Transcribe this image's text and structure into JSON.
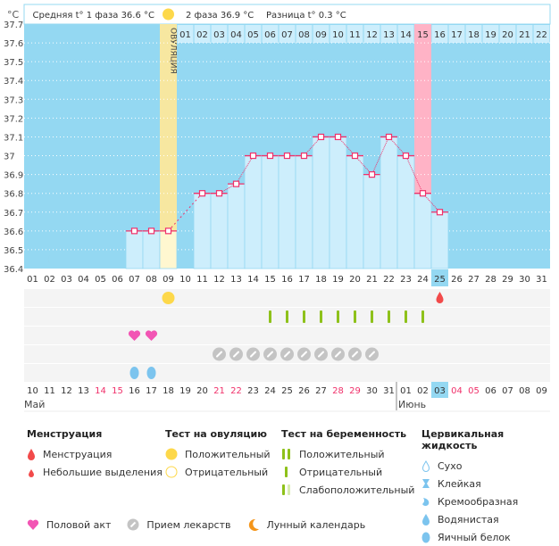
{
  "header": {
    "unit": "°C",
    "phase1": "Средняя t° 1 фаза 36.6 °C",
    "phase2": "2 фаза 36.9 °C",
    "diff": "Разница t° 0.3 °C",
    "ovulation_label": "ОВУЛЯЦИЯ"
  },
  "chart_data": {
    "type": "line",
    "ylim": [
      36.4,
      37.7
    ],
    "yticks": [
      "37.7",
      "37.6",
      "37.5",
      "37.4",
      "37.3",
      "37.2",
      "37.1",
      "37",
      "36.9",
      "36.8",
      "36.7",
      "36.6",
      "36.5",
      "36.4"
    ],
    "cycle_days": [
      "01",
      "02",
      "03",
      "04",
      "05",
      "06",
      "07",
      "08",
      "09",
      "10",
      "11",
      "12",
      "13",
      "14",
      "15",
      "16",
      "17",
      "18",
      "19",
      "20",
      "21",
      "22",
      "23",
      "24",
      "25",
      "26",
      "27",
      "28",
      "29",
      "30",
      "31"
    ],
    "top_days": [
      "01",
      "02",
      "03",
      "04",
      "05",
      "06",
      "07",
      "08",
      "09",
      "10",
      "11",
      "12",
      "13",
      "14",
      "15",
      "16",
      "17",
      "18",
      "19",
      "20",
      "21",
      "22"
    ],
    "temperatures": [
      null,
      null,
      null,
      null,
      null,
      null,
      36.6,
      36.6,
      36.6,
      null,
      36.8,
      36.8,
      36.85,
      37.0,
      37.0,
      37.0,
      37.0,
      37.1,
      37.1,
      37.0,
      36.9,
      37.1,
      37.0,
      36.8,
      36.7,
      null,
      null,
      null,
      null,
      null,
      null
    ],
    "ovulation_day": 9,
    "highlight_day": 24,
    "current_day": 25,
    "moon_day": 2,
    "dates": [
      "10",
      "11",
      "12",
      "13",
      "14",
      "15",
      "16",
      "17",
      "18",
      "19",
      "20",
      "21",
      "22",
      "23",
      "24",
      "25",
      "26",
      "27",
      "28",
      "29",
      "30",
      "31",
      "01",
      "02",
      "03",
      "04",
      "05",
      "06",
      "07",
      "08",
      "09"
    ],
    "weekend_dates_idx": [
      5,
      6,
      12,
      13,
      19,
      20,
      26,
      27
    ],
    "months": [
      "Май",
      "Июнь"
    ],
    "markers": {
      "ovulation_test_positive": [
        9
      ],
      "menstruation": [
        25
      ],
      "pregnancy_test_negative": [
        15,
        16,
        17,
        18,
        19,
        20,
        21,
        22,
        23,
        24
      ],
      "intercourse": [
        7,
        8
      ],
      "medication": [
        12,
        13,
        14,
        15,
        16,
        17,
        18,
        19,
        20,
        21
      ],
      "egg_white": [
        7,
        8
      ]
    }
  },
  "colors": {
    "bg": "#94d8f2",
    "bar": "#cdeefc",
    "line": "#f0306a",
    "ovulation": "#f7e7a0",
    "highlight": "#ffb3c6",
    "weekend": "#f0306a"
  },
  "legend": {
    "menstruation": {
      "title": "Менструация",
      "items": [
        "Менструация",
        "Небольшие выделения"
      ]
    },
    "ovulation_test": {
      "title": "Тест на овуляцию",
      "items": [
        "Положительный",
        "Отрицательный"
      ]
    },
    "pregnancy_test": {
      "title": "Тест на беременность",
      "items": [
        "Положительный",
        "Отрицательный",
        "Слабоположительный"
      ]
    },
    "cervical": {
      "title": "Цервикальная жидкость",
      "items": [
        "Сухо",
        "Клейкая",
        "Кремообразная",
        "Водянистая",
        "Яичный белок"
      ]
    },
    "other": [
      "Половой акт",
      "Прием лекарств",
      "Лунный календарь"
    ]
  }
}
